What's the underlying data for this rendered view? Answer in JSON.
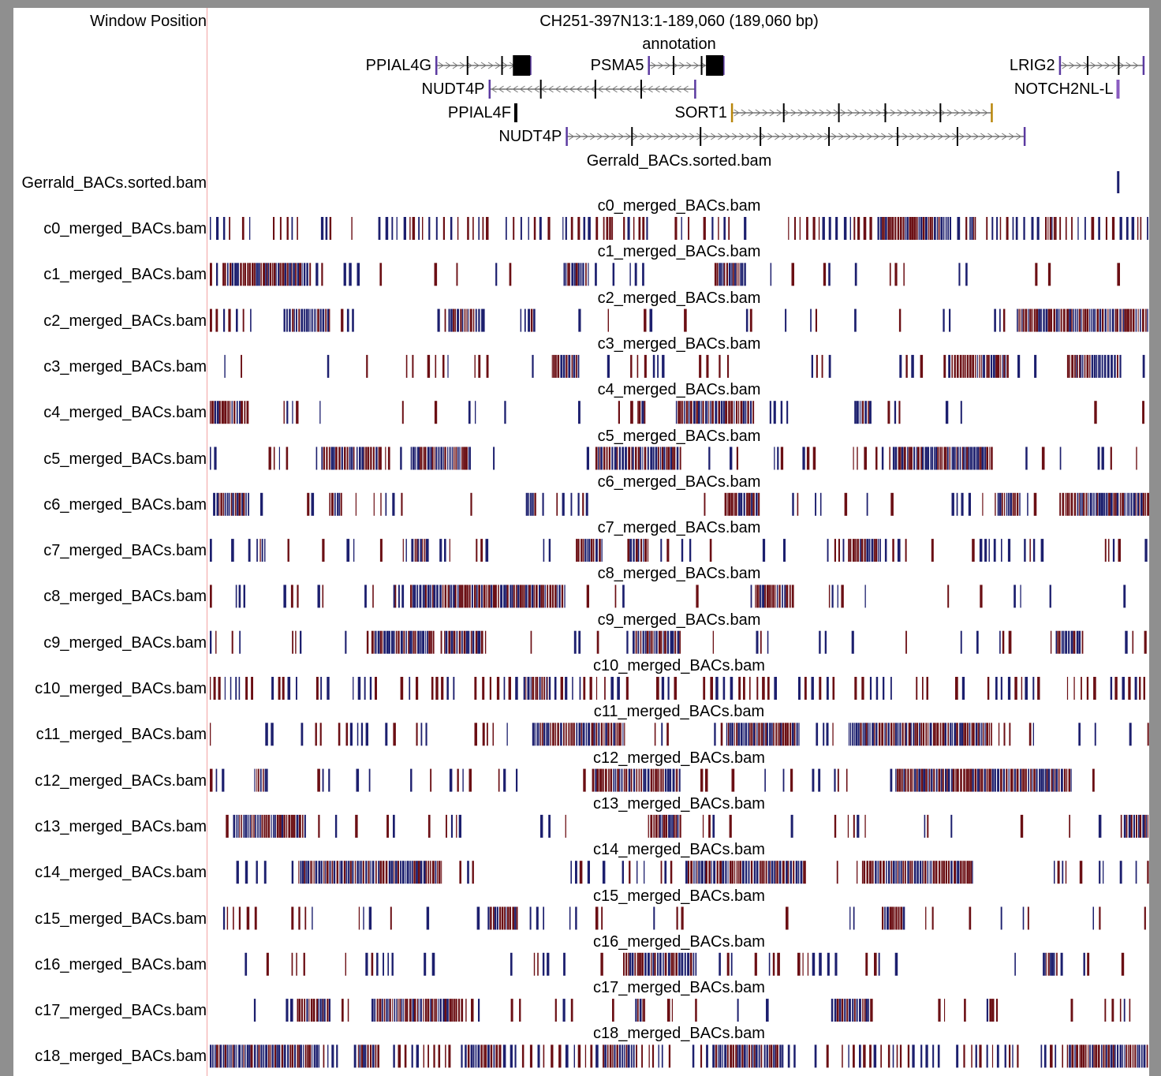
{
  "header": {
    "window_label": "Window Position",
    "position": "CH251-397N13:1-189,060 (189,060 bp)"
  },
  "annotation_track": {
    "title": "annotation",
    "genes": [
      {
        "name": "PPIAL4G",
        "start": 45800,
        "end": 64700,
        "strand": "+",
        "row": 0,
        "color": "#5b3aa0"
      },
      {
        "name": "PSMA5",
        "start": 88500,
        "end": 103500,
        "strand": "+",
        "row": 0,
        "color": "#5b3aa0"
      },
      {
        "name": "LRIG2",
        "start": 171100,
        "end": 187900,
        "strand": "+",
        "row": 0,
        "color": "#5b3aa0"
      },
      {
        "name": "NUDT4P",
        "start": 56500,
        "end": 97800,
        "strand": "-",
        "row": 1,
        "color": "#5b3aa0"
      },
      {
        "name": "NOTCH2NL-L",
        "start": 182800,
        "end": 183200,
        "strand": "+",
        "row": 1,
        "color": "#8a5cc0"
      },
      {
        "name": "PPIAL4F",
        "start": 61800,
        "end": 62300,
        "strand": "+",
        "row": 2,
        "color": "#000000"
      },
      {
        "name": "SORT1",
        "start": 105200,
        "end": 157400,
        "strand": "+",
        "row": 2,
        "color": "#b8860b"
      },
      {
        "name": "NUDT4P",
        "start": 72000,
        "end": 164000,
        "strand": "+",
        "row": 3,
        "color": "#5b3aa0"
      }
    ]
  },
  "sorted_track": {
    "label": "Gerrald_BACs.sorted.bam",
    "title": "Gerrald_BACs.sorted.bam",
    "mark_position": 182600
  },
  "tracks": [
    {
      "label": "c0_merged_BACs.bam",
      "title": "c0_merged_BACs.bam",
      "density": 0.88,
      "seed": 11
    },
    {
      "label": "c1_merged_BACs.bam",
      "title": "c1_merged_BACs.bam",
      "density": 0.45,
      "seed": 23
    },
    {
      "label": "c2_merged_BACs.bam",
      "title": "c2_merged_BACs.bam",
      "density": 0.45,
      "seed": 37
    },
    {
      "label": "c3_merged_BACs.bam",
      "title": "c3_merged_BACs.bam",
      "density": 0.45,
      "seed": 41
    },
    {
      "label": "c4_merged_BACs.bam",
      "title": "c4_merged_BACs.bam",
      "density": 0.45,
      "seed": 53
    },
    {
      "label": "c5_merged_BACs.bam",
      "title": "c5_merged_BACs.bam",
      "density": 0.45,
      "seed": 67
    },
    {
      "label": "c6_merged_BACs.bam",
      "title": "c6_merged_BACs.bam",
      "density": 0.45,
      "seed": 71
    },
    {
      "label": "c7_merged_BACs.bam",
      "title": "c7_merged_BACs.bam",
      "density": 0.5,
      "seed": 83
    },
    {
      "label": "c8_merged_BACs.bam",
      "title": "c8_merged_BACs.bam",
      "density": 0.45,
      "seed": 97
    },
    {
      "label": "c9_merged_BACs.bam",
      "title": "c9_merged_BACs.bam",
      "density": 0.38,
      "seed": 101
    },
    {
      "label": "c10_merged_BACs.bam",
      "title": "c10_merged_BACs.bam",
      "density": 0.82,
      "seed": 113
    },
    {
      "label": "c11_merged_BACs.bam",
      "title": "c11_merged_BACs.bam",
      "density": 0.45,
      "seed": 127
    },
    {
      "label": "c12_merged_BACs.bam",
      "title": "c12_merged_BACs.bam",
      "density": 0.45,
      "seed": 131
    },
    {
      "label": "c13_merged_BACs.bam",
      "title": "c13_merged_BACs.bam",
      "density": 0.45,
      "seed": 139
    },
    {
      "label": "c14_merged_BACs.bam",
      "title": "c14_merged_BACs.bam",
      "density": 0.45,
      "seed": 149
    },
    {
      "label": "c15_merged_BACs.bam",
      "title": "c15_merged_BACs.bam",
      "density": 0.45,
      "seed": 157
    },
    {
      "label": "c16_merged_BACs.bam",
      "title": "c16_merged_BACs.bam",
      "density": 0.45,
      "seed": 163
    },
    {
      "label": "c17_merged_BACs.bam",
      "title": "c17_merged_BACs.bam",
      "density": 0.45,
      "seed": 173
    },
    {
      "label": "c18_merged_BACs.bam",
      "title": "c18_merged_BACs.bam",
      "density": 0.9,
      "seed": 181
    }
  ],
  "colors": {
    "blue": "#1c1f6e",
    "red": "#6b0f14",
    "divider": "#f2a3a3"
  }
}
